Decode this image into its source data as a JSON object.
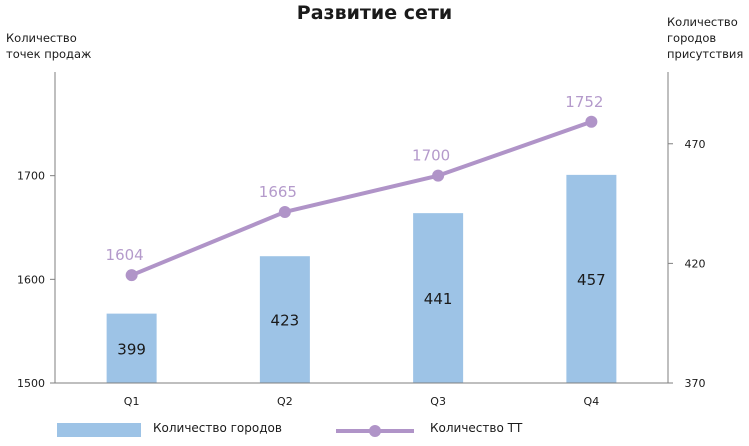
{
  "chart_data": {
    "type": "bar+line",
    "title": "Развитие сети",
    "categories": [
      "Q1",
      "Q2",
      "Q3",
      "Q4"
    ],
    "left_axis": {
      "label_lines": [
        "Количество",
        "точек продаж"
      ],
      "ylim": [
        1500,
        1800
      ],
      "ticks": [
        1500,
        1600,
        1700
      ]
    },
    "right_axis": {
      "label_lines": [
        "Количество",
        "городов",
        "присутствия"
      ],
      "ylim": [
        370,
        500
      ],
      "ticks": [
        370,
        420,
        470
      ]
    },
    "series": [
      {
        "name": "Количество городов",
        "type": "bar",
        "axis": "right",
        "color": "#9DC3E6",
        "values": [
          399,
          423,
          441,
          457
        ]
      },
      {
        "name": "Количество ТТ",
        "type": "line",
        "axis": "left",
        "color": "#B094C8",
        "label_color": "#B49ACB",
        "values": [
          1604,
          1665,
          1700,
          1752
        ]
      }
    ],
    "grid": false,
    "legend_position": "bottom"
  }
}
